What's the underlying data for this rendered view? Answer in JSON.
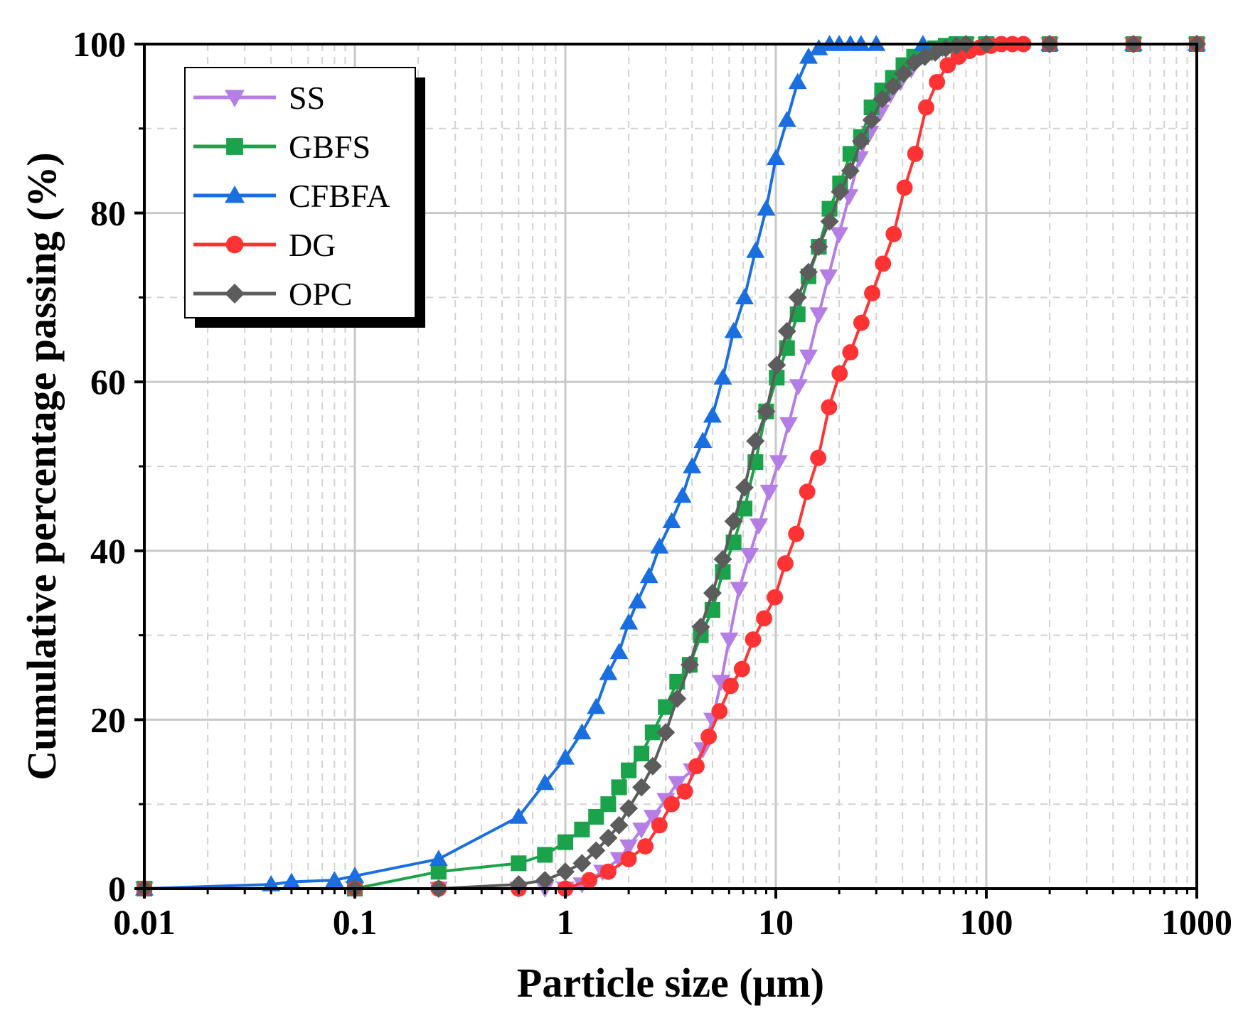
{
  "chart_data": {
    "type": "line",
    "title": "",
    "xlabel": "Particle size (μm)",
    "ylabel": "Cumulative percentage passing (%)",
    "xscale": "log",
    "xlim": [
      0.01,
      1000
    ],
    "ylim": [
      0,
      100
    ],
    "x_ticks": [
      0.01,
      0.1,
      1,
      10,
      100,
      1000
    ],
    "x_tick_labels": [
      "0.01",
      "0.1",
      "1",
      "10",
      "100",
      "1000"
    ],
    "y_ticks": [
      0,
      20,
      40,
      60,
      80,
      100
    ],
    "y_tick_labels": [
      "0",
      "20",
      "40",
      "60",
      "80",
      "100"
    ],
    "grid": true,
    "legend_position": "top-left",
    "series": [
      {
        "name": "SS",
        "color": "#b57ee6",
        "marker": "triangle-down",
        "x": [
          0.01,
          0.1,
          0.25,
          0.6,
          0.8,
          1.0,
          1.2,
          1.5,
          1.8,
          2.0,
          2.3,
          2.6,
          3.0,
          3.4,
          4.0,
          4.5,
          5.0,
          5.5,
          6.0,
          6.7,
          7.5,
          8.3,
          9.3,
          10.3,
          11.5,
          12.8,
          14.3,
          16.0,
          17.8,
          20.0,
          22.3,
          25.0,
          28.0,
          31.5,
          35.0,
          39.0,
          44.0,
          49.0,
          55.0,
          62.0,
          70.0,
          80.0,
          100.0,
          200.0,
          500.0,
          1000.0
        ],
        "y": [
          0,
          0,
          0,
          0,
          0,
          0,
          0.5,
          2,
          3.5,
          5,
          7,
          8.5,
          10.5,
          12.5,
          14,
          16.5,
          20,
          24.5,
          29.5,
          35.5,
          39.5,
          43,
          47,
          50.5,
          55,
          59.5,
          63,
          68,
          72.5,
          77.5,
          82,
          86.5,
          89.5,
          92,
          94,
          95.5,
          97,
          98.5,
          99,
          99.5,
          99.8,
          100,
          100,
          100,
          100,
          100
        ]
      },
      {
        "name": "GBFS",
        "color": "#1aa34a",
        "marker": "square",
        "x": [
          0.01,
          0.1,
          0.25,
          0.6,
          0.8,
          1.0,
          1.2,
          1.4,
          1.6,
          1.8,
          2.0,
          2.3,
          2.6,
          3.0,
          3.4,
          3.9,
          4.4,
          5.0,
          5.6,
          6.3,
          7.1,
          8.0,
          9.0,
          10.1,
          11.3,
          12.7,
          14.3,
          16.0,
          18.0,
          20.2,
          22.6,
          25.4,
          28.5,
          32.0,
          36.0,
          40.4,
          45.4,
          51.0,
          57.2,
          64.2,
          72.1,
          80.0,
          100.0,
          200.0,
          500.0,
          1000.0
        ],
        "y": [
          0,
          0,
          2,
          3,
          4,
          5.5,
          7,
          8.5,
          10,
          12,
          14,
          16,
          18.5,
          21.5,
          24.5,
          26.5,
          30,
          33,
          37.5,
          41,
          45,
          50.5,
          56.5,
          60.5,
          64,
          68,
          72.5,
          76,
          80.5,
          83.5,
          87,
          89,
          92.5,
          94.5,
          96,
          97.5,
          98.5,
          99,
          99.5,
          99.8,
          100,
          100,
          100,
          100,
          100,
          100
        ]
      },
      {
        "name": "CFBFA",
        "color": "#1a6fe0",
        "marker": "triangle-up",
        "x": [
          0.01,
          0.04,
          0.05,
          0.08,
          0.1,
          0.25,
          0.6,
          0.8,
          1.0,
          1.2,
          1.4,
          1.6,
          1.8,
          2.0,
          2.2,
          2.5,
          2.8,
          3.2,
          3.6,
          4.0,
          4.5,
          5.0,
          5.6,
          6.3,
          7.1,
          8.0,
          9.0,
          10.0,
          11.3,
          12.7,
          14.3,
          16.0,
          18.0,
          20.0,
          22.6,
          25.4,
          30.0,
          50.0,
          100.0,
          200.0,
          500.0,
          1000.0
        ],
        "y": [
          0,
          0.5,
          0.8,
          1,
          1.5,
          3.5,
          8.5,
          12.5,
          15.5,
          18.5,
          21.5,
          25.5,
          28,
          31.5,
          34,
          37,
          40.5,
          43.5,
          46.5,
          50,
          53,
          56,
          60.5,
          66,
          70,
          75.5,
          80.5,
          86.5,
          91,
          95.5,
          98.5,
          99.5,
          100,
          100,
          100,
          100,
          100,
          100,
          100,
          100,
          100,
          100
        ]
      },
      {
        "name": "DG",
        "color": "#ff3333",
        "marker": "circle",
        "x": [
          0.01,
          0.1,
          0.25,
          0.6,
          1.0,
          1.3,
          1.6,
          2.0,
          2.4,
          2.8,
          3.2,
          3.7,
          4.2,
          4.8,
          5.4,
          6.1,
          6.9,
          7.8,
          8.8,
          9.9,
          11.1,
          12.5,
          14.1,
          15.9,
          17.9,
          20.1,
          22.6,
          25.5,
          28.7,
          32.3,
          36.3,
          40.9,
          46.0,
          51.8,
          58.3,
          65.6,
          73.8,
          83.1,
          93.5,
          105.0,
          118.0,
          133.0,
          150.0,
          200.0,
          500.0,
          1000.0
        ],
        "y": [
          0,
          0,
          0,
          0,
          0,
          1,
          2,
          3.5,
          5,
          7.5,
          10,
          11.5,
          14.5,
          18,
          21,
          24,
          26,
          29.5,
          32,
          34.5,
          38.5,
          42,
          47,
          51,
          57,
          61,
          63.5,
          67,
          70.5,
          74,
          77.5,
          83,
          87,
          92.5,
          95.5,
          97.5,
          98.5,
          99.2,
          99.6,
          99.8,
          100,
          100,
          100,
          100,
          100,
          100
        ]
      },
      {
        "name": "OPC",
        "color": "#5c5c5c",
        "marker": "diamond",
        "x": [
          0.01,
          0.1,
          0.25,
          0.6,
          0.8,
          1.0,
          1.2,
          1.4,
          1.6,
          1.8,
          2.0,
          2.3,
          2.6,
          3.0,
          3.4,
          3.9,
          4.4,
          5.0,
          5.6,
          6.3,
          7.1,
          8.0,
          9.0,
          10.1,
          11.3,
          12.7,
          14.3,
          16.0,
          18.0,
          20.2,
          22.6,
          25.4,
          28.5,
          32.0,
          36.0,
          40.4,
          45.4,
          51.0,
          57.2,
          64.2,
          72.1,
          80.0,
          100.0,
          200.0,
          500.0,
          1000.0
        ],
        "y": [
          0,
          0,
          0,
          0.5,
          1,
          2,
          3,
          4.5,
          6,
          7.5,
          9.5,
          12,
          14.5,
          18.5,
          22.5,
          26.5,
          31,
          35,
          39,
          43.5,
          47.5,
          53,
          56.5,
          62,
          66,
          70,
          73,
          76,
          79,
          82.5,
          85,
          88.5,
          91,
          93.5,
          95,
          96.5,
          97.8,
          98.5,
          99,
          99.5,
          99.8,
          100,
          100,
          100,
          100,
          100
        ]
      }
    ]
  }
}
